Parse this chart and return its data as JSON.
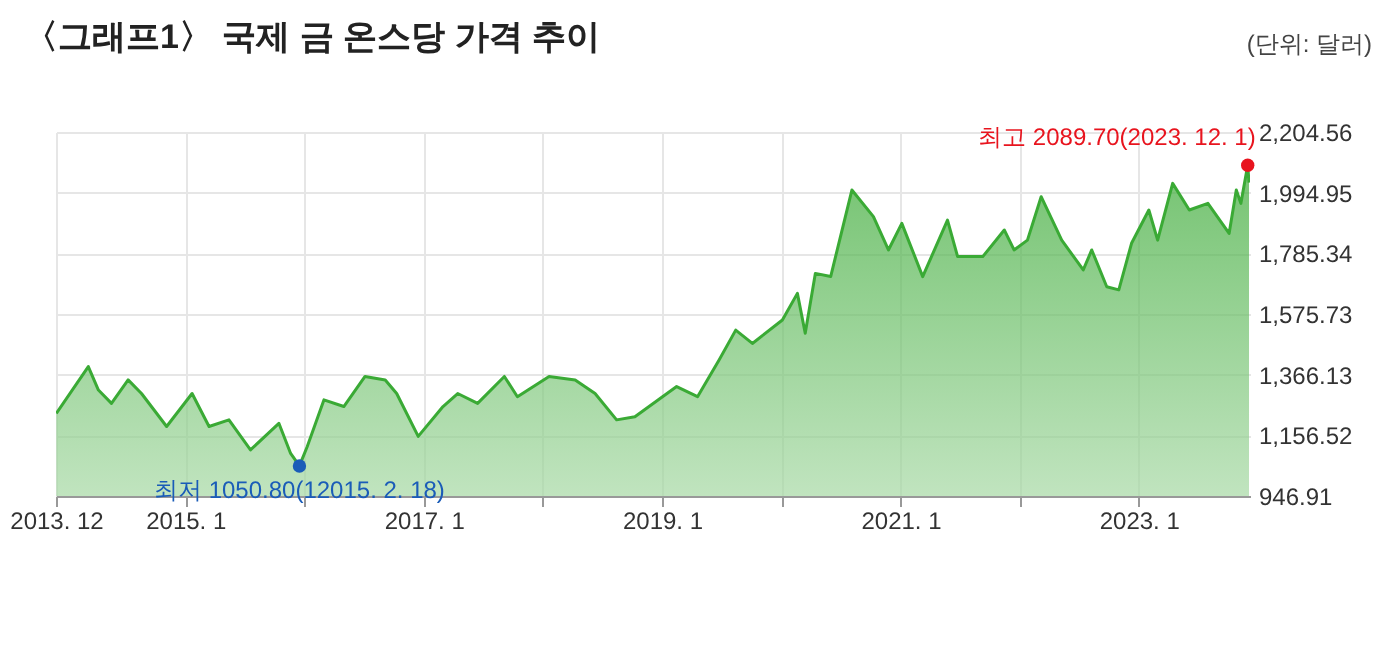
{
  "chart_data": {
    "type": "area",
    "title": "〈그래프1〉 국제 금 온스당 가격 추이",
    "annotations": [
      "(단위: 달러)",
      {
        "text": "최저 1050.80(12015. 2. 18)",
        "x": "2015-12-17",
        "y": 1050.8
      },
      {
        "text": "최고 2089.70(2023. 12. 1)",
        "x": "2023-12-01",
        "y": 2089.7
      }
    ],
    "series": [
      {
        "color": "#3aaa35",
        "x": [
          "2013-12-02",
          "2014-03-10",
          "2014-04-10",
          "2014-05-20",
          "2014-07-10",
          "2014-08-20",
          "2014-11-05",
          "2015-01-22",
          "2015-03-15",
          "2015-05-15",
          "2015-07-20",
          "2015-10-15",
          "2015-11-20",
          "2015-12-17",
          "2016-01-10",
          "2016-03-01",
          "2016-05-01",
          "2016-07-05",
          "2016-09-05",
          "2016-10-10",
          "2016-12-15",
          "2017-03-01",
          "2017-04-15",
          "2017-06-15",
          "2017-09-05",
          "2017-10-15",
          "2018-01-20",
          "2018-04-10",
          "2018-06-10",
          "2018-08-15",
          "2018-10-10",
          "2019-02-15",
          "2019-04-20",
          "2019-06-25",
          "2019-08-15",
          "2019-10-05",
          "2020-01-05",
          "2020-02-20",
          "2020-03-15",
          "2020-04-15",
          "2020-06-01",
          "2020-08-05",
          "2020-10-10",
          "2020-11-25",
          "2021-01-05",
          "2021-03-10",
          "2021-05-25",
          "2021-06-25",
          "2021-09-10",
          "2021-11-15",
          "2021-12-15",
          "2022-01-25",
          "2022-03-08",
          "2022-05-10",
          "2022-07-15",
          "2022-08-10",
          "2022-09-25",
          "2022-11-01",
          "2022-12-10",
          "2023-02-01",
          "2023-02-28",
          "2023-04-15",
          "2023-06-05",
          "2023-08-01",
          "2023-10-05",
          "2023-10-27",
          "2023-11-10",
          "2023-12-01",
          "2023-12-05"
        ],
        "values": [
          1232,
          1394,
          1313,
          1267,
          1348,
          1301,
          1187,
          1301,
          1187,
          1210,
          1106,
          1198,
          1094,
          1050.8,
          1118,
          1279,
          1256,
          1360,
          1348,
          1301,
          1153,
          1256,
          1301,
          1267,
          1360,
          1290,
          1360,
          1348,
          1301,
          1210,
          1221,
          1325,
          1290,
          1417,
          1520,
          1474,
          1555,
          1647,
          1509,
          1716,
          1705,
          2004,
          1912,
          1797,
          1889,
          1705,
          1900,
          1774,
          1774,
          1866,
          1797,
          1831,
          1981,
          1831,
          1728,
          1797,
          1670,
          1659,
          1820,
          1935,
          1831,
          2027,
          1935,
          1958,
          1854,
          2004,
          1958,
          2089.7,
          2030
        ]
      },
      {
        "type": "scatter",
        "colors": [
          "#1a5cb8",
          "#e8141e"
        ],
        "x": [
          "2015-12-17",
          "2023-12-01"
        ],
        "values": [
          1050.8,
          2089.7
        ]
      }
    ],
    "xlim": [
      "2013-12-01",
      "2023-12-08"
    ],
    "xticks": [
      {
        "value": "2013-12-01",
        "label": "2013. 12"
      },
      {
        "value": "2015-01-01",
        "label": "2015. 1"
      },
      {
        "value": "2016-01-01",
        "label": null
      },
      {
        "value": "2017-01-01",
        "label": "2017. 1"
      },
      {
        "value": "2018-01-01",
        "label": null
      },
      {
        "value": "2019-01-01",
        "label": "2019. 1"
      },
      {
        "value": "2020-01-01",
        "label": null
      },
      {
        "value": "2021-01-01",
        "label": "2021. 1"
      },
      {
        "value": "2022-01-01",
        "label": null
      },
      {
        "value": "2023-01-01",
        "label": "2023. 1"
      }
    ],
    "ylim": [
      946.91,
      2204.56
    ],
    "yticks": [
      {
        "value": 946.91,
        "label": "946.91"
      },
      {
        "value": 1156.52,
        "label": "1,156.52"
      },
      {
        "value": 1366.13,
        "label": "1,366.13"
      },
      {
        "value": 1575.73,
        "label": "1,575.73"
      },
      {
        "value": 1785.34,
        "label": "1,785.34"
      },
      {
        "value": 1994.95,
        "label": "1,994.95"
      },
      {
        "value": 2204.56,
        "label": "2,204.56"
      }
    ],
    "grid": true
  }
}
